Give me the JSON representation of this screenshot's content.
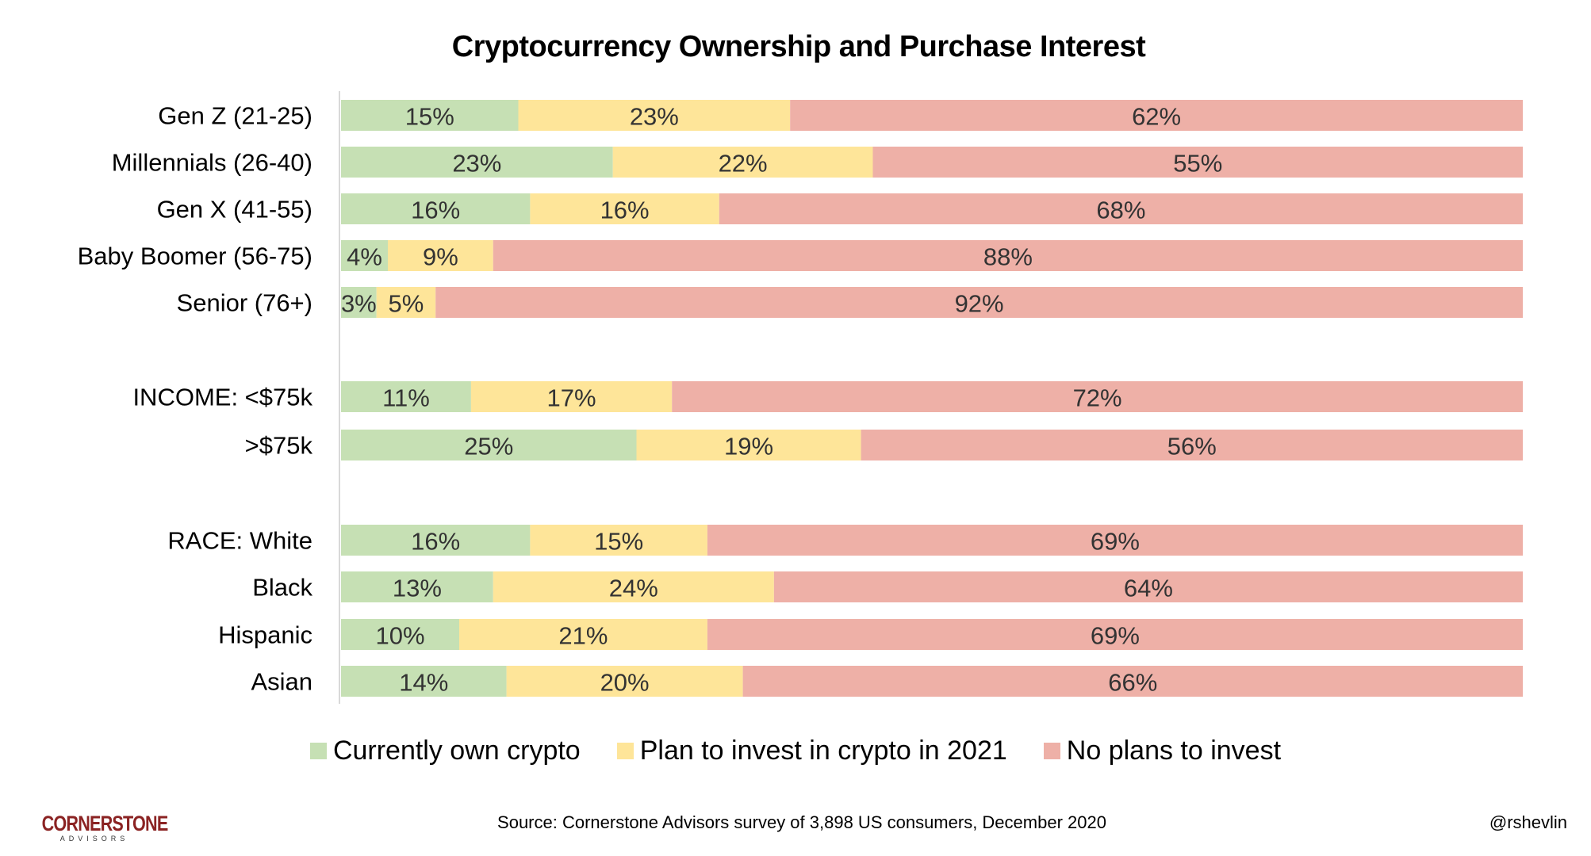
{
  "chart_data": {
    "type": "bar",
    "orientation": "horizontal",
    "stacked": true,
    "title": "Cryptocurrency Ownership and Purchase Interest",
    "categories": [
      "Gen Z (21-25)",
      "Millennials (26-40)",
      "Gen X (41-55)",
      "Baby Boomer (56-75)",
      "Senior (76+)",
      "INCOME: <$75k",
      ">$75k",
      "RACE: White",
      "Black",
      "Hispanic",
      "Asian"
    ],
    "series": [
      {
        "name": "Currently own crypto",
        "color": "#c6e0b4",
        "values": [
          15,
          23,
          16,
          4,
          3,
          11,
          25,
          16,
          13,
          10,
          14
        ]
      },
      {
        "name": "Plan to invest in crypto in 2021",
        "color": "#fee599",
        "values": [
          23,
          22,
          16,
          9,
          5,
          17,
          19,
          15,
          24,
          21,
          20
        ]
      },
      {
        "name": "No plans to invest",
        "color": "#eeb0a7",
        "values": [
          62,
          55,
          68,
          88,
          92,
          72,
          56,
          69,
          64,
          69,
          66
        ]
      }
    ],
    "value_format": "percent",
    "legend": "bottom",
    "grid": false
  },
  "footer": {
    "source": "Source: Cornerstone Advisors survey of 3,898 US consumers, December 2020",
    "handle": "@rshevlin",
    "logo_text": "CORNERSTONE",
    "logo_subtext": "ADVISORS"
  }
}
